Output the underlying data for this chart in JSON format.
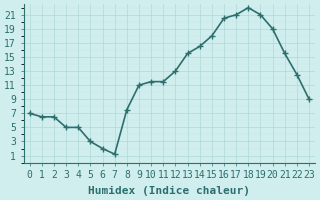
{
  "x": [
    0,
    1,
    2,
    3,
    4,
    5,
    6,
    7,
    8,
    9,
    10,
    11,
    12,
    13,
    14,
    15,
    16,
    17,
    18,
    19,
    20,
    21,
    22,
    23
  ],
  "y": [
    7,
    6.5,
    6.5,
    5,
    5,
    3,
    2,
    1.2,
    7.5,
    11,
    11.5,
    11.5,
    13,
    15.5,
    16.5,
    18,
    20.5,
    21,
    22,
    21,
    19,
    15.5,
    12.5,
    9
  ],
  "line_color": "#2d6e6e",
  "marker": "+",
  "marker_size": 4,
  "bg_color": "#d0eeee",
  "grid_color": "#b0d8d8",
  "grid_minor_color": "#c8e8e8",
  "xlabel": "Humidex (Indice chaleur)",
  "xlabel_fontsize": 8,
  "tick_fontsize": 7,
  "ylim": [
    0,
    22.5
  ],
  "xlim": [
    -0.5,
    23.5
  ],
  "yticks": [
    1,
    3,
    5,
    7,
    9,
    11,
    13,
    15,
    17,
    19,
    21
  ],
  "xticks": [
    0,
    1,
    2,
    3,
    4,
    5,
    6,
    7,
    8,
    9,
    10,
    11,
    12,
    13,
    14,
    15,
    16,
    17,
    18,
    19,
    20,
    21,
    22,
    23
  ],
  "linewidth": 1.2
}
